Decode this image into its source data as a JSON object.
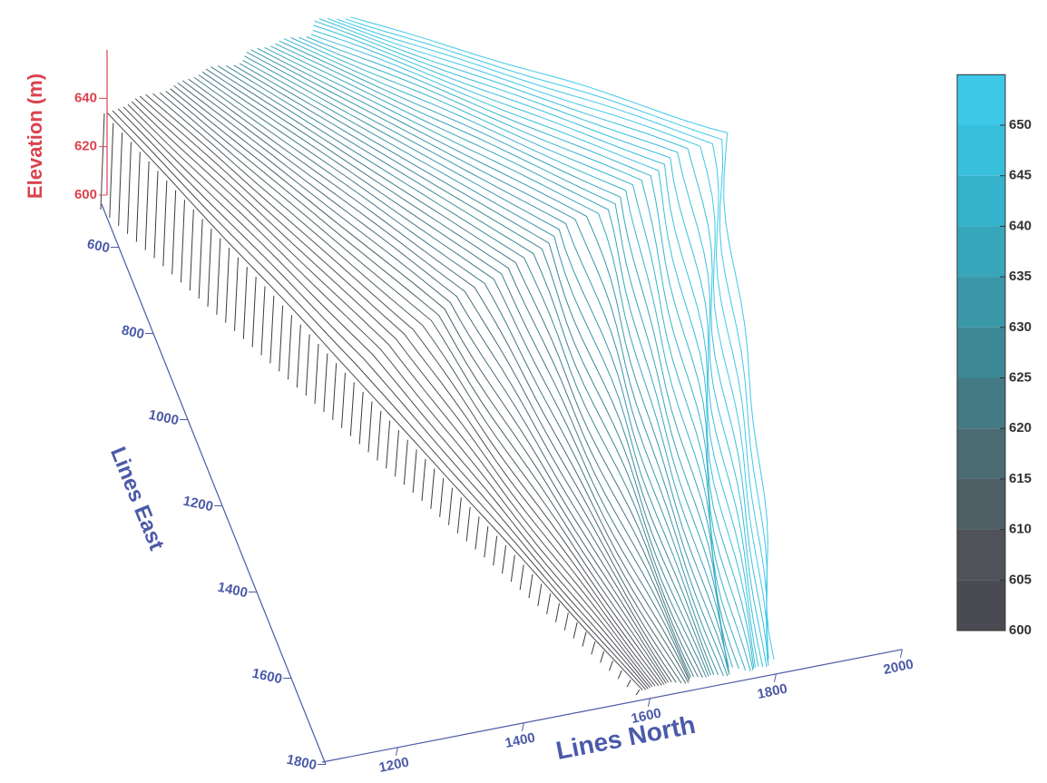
{
  "chart_data": {
    "type": "contour3d",
    "x_label": "Lines North",
    "y_label": "Lines East",
    "z_label": "Elevation (m)",
    "xlim": [
      1080,
      2000
    ],
    "xticks": [
      1200,
      1400,
      1600,
      1800,
      2000
    ],
    "ylim": [
      500,
      1800
    ],
    "yticks": [
      600,
      800,
      1000,
      1200,
      1400,
      1600,
      1800
    ],
    "zlim": [
      600,
      660
    ],
    "zticks": [
      600,
      620,
      640
    ],
    "axis_color": "#4b5aa8",
    "z_axis_color": "#d9434f",
    "colorbar": {
      "lim": [
        600,
        655
      ],
      "ticks": [
        600,
        605,
        610,
        615,
        620,
        625,
        630,
        635,
        640,
        645,
        650
      ],
      "colors": [
        "#4a4a52",
        "#4f5258",
        "#4e5e64",
        "#4a6b72",
        "#437a84",
        "#3d8896",
        "#3a97a8",
        "#37a6bb",
        "#36b3cc",
        "#38bfdb",
        "#3ec8e8"
      ]
    }
  }
}
